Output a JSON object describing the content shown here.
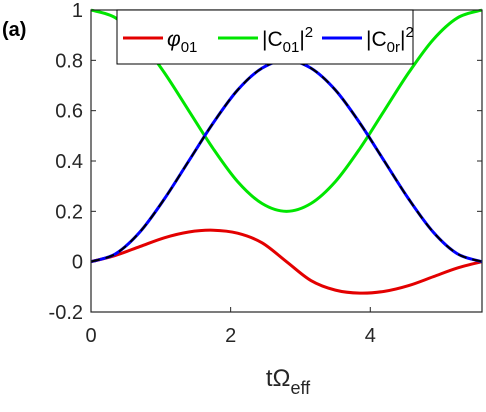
{
  "panel_label": "(a)",
  "colors": {
    "red": "#e30000",
    "green": "#00e600",
    "blue": "#0000ff",
    "dash": "#000000",
    "axis": "#262626"
  },
  "chart_data": {
    "type": "line",
    "title": "",
    "xlabel": {
      "main": "tΩ",
      "sub": "eff"
    },
    "ylabel": "",
    "xlim": [
      0,
      5.6
    ],
    "ylim": [
      -0.2,
      1.0
    ],
    "xticks": [
      0,
      2,
      4
    ],
    "yticks": [
      -0.2,
      0,
      0.2,
      0.4,
      0.6,
      0.8,
      1
    ],
    "xtick_labels": [
      "0",
      "2",
      "4"
    ],
    "ytick_labels": [
      "-0.2",
      "0",
      "0.2",
      "0.4",
      "0.6",
      "0.8",
      "1"
    ],
    "grid": false,
    "legend_placement": "top-center",
    "x": [
      0,
      0.35,
      0.7,
      1.05,
      1.4,
      1.75,
      2.1,
      2.45,
      2.8,
      3.15,
      3.5,
      3.85,
      4.2,
      4.55,
      4.9,
      5.25,
      5.6
    ],
    "series": [
      {
        "name": "φ01",
        "legend": {
          "main": "φ",
          "sub": "01"
        },
        "color": "#e30000",
        "dashed": false,
        "values": [
          0,
          0.025,
          0.06,
          0.095,
          0.118,
          0.125,
          0.113,
          0.075,
          0.0,
          -0.075,
          -0.113,
          -0.125,
          -0.118,
          -0.095,
          -0.06,
          -0.025,
          0
        ]
      },
      {
        "name": "|C01|²",
        "legend": {
          "main": "|C",
          "sub": "01",
          "tail": "|",
          "sup": "2"
        },
        "color": "#00e600",
        "dashed": false,
        "values": [
          1.0,
          0.969,
          0.882,
          0.751,
          0.6,
          0.449,
          0.318,
          0.231,
          0.2,
          0.231,
          0.318,
          0.449,
          0.6,
          0.751,
          0.882,
          0.969,
          1.0
        ]
      },
      {
        "name": "|C0r|²",
        "legend": {
          "main": "|C",
          "sub": "0r",
          "tail": "|",
          "sup": "2"
        },
        "color": "#0000ff",
        "dashed": false,
        "values": [
          0,
          0.031,
          0.118,
          0.249,
          0.4,
          0.551,
          0.682,
          0.769,
          0.8,
          0.769,
          0.682,
          0.551,
          0.4,
          0.249,
          0.118,
          0.031,
          0
        ]
      },
      {
        "name": "",
        "legend": null,
        "color": "#000000",
        "dashed": true,
        "values": [
          0,
          0.031,
          0.118,
          0.249,
          0.4,
          0.551,
          0.682,
          0.769,
          0.8,
          0.769,
          0.682,
          0.551,
          0.4,
          0.249,
          0.118,
          0.031,
          0
        ]
      }
    ]
  }
}
